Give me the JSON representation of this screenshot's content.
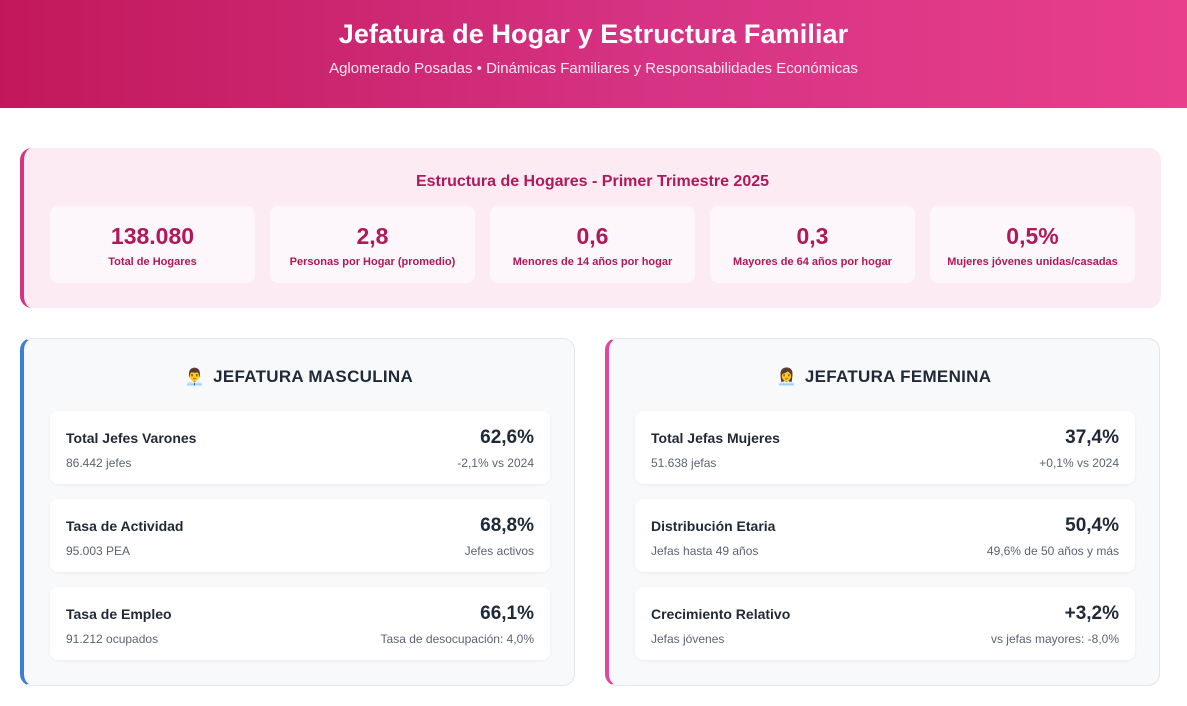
{
  "header": {
    "title": "Jefatura de Hogar y Estructura Familiar",
    "subtitle": "Aglomerado Posadas • Dinámicas Familiares y Responsabilidades Económicas"
  },
  "summary": {
    "title": "Estructura de Hogares - Primer Trimestre 2025",
    "stats": [
      {
        "value": "138.080",
        "label": "Total de Hogares"
      },
      {
        "value": "2,8",
        "label": "Personas por Hogar (promedio)"
      },
      {
        "value": "0,6",
        "label": "Menores de 14 años por hogar"
      },
      {
        "value": "0,3",
        "label": "Mayores de 64 años por hogar"
      },
      {
        "value": "0,5%",
        "label": "Mujeres jóvenes unidas/casadas"
      }
    ]
  },
  "male": {
    "icon": "man-office-worker-icon",
    "title": "JEFATURA MASCULINA",
    "cards": [
      {
        "name": "Total Jefes Varones",
        "sub": "86.442 jefes",
        "pct": "62,6%",
        "note": "-2,1% vs 2024"
      },
      {
        "name": "Tasa de Actividad",
        "sub": "95.003 PEA",
        "pct": "68,8%",
        "note": "Jefes activos"
      },
      {
        "name": "Tasa de Empleo",
        "sub": "91.212 ocupados",
        "pct": "66,1%",
        "note": "Tasa de desocupación: 4,0%"
      }
    ]
  },
  "female": {
    "icon": "woman-office-worker-icon",
    "title": "JEFATURA FEMENINA",
    "cards": [
      {
        "name": "Total Jefas Mujeres",
        "sub": "51.638 jefas",
        "pct": "37,4%",
        "note": "+0,1% vs 2024"
      },
      {
        "name": "Distribución Etaria",
        "sub": "Jefas hasta 49 años",
        "pct": "50,4%",
        "note": "49,6% de 50 años y más"
      },
      {
        "name": "Crecimiento Relativo",
        "sub": "Jefas jóvenes",
        "pct": "+3,2%",
        "note": "vs jefas mayores: -8,0%"
      }
    ]
  },
  "colors": {
    "accent": "#d63384",
    "accent_dark": "#b0185a",
    "male_border": "#3b7dd8",
    "female_border": "#e0479e"
  }
}
